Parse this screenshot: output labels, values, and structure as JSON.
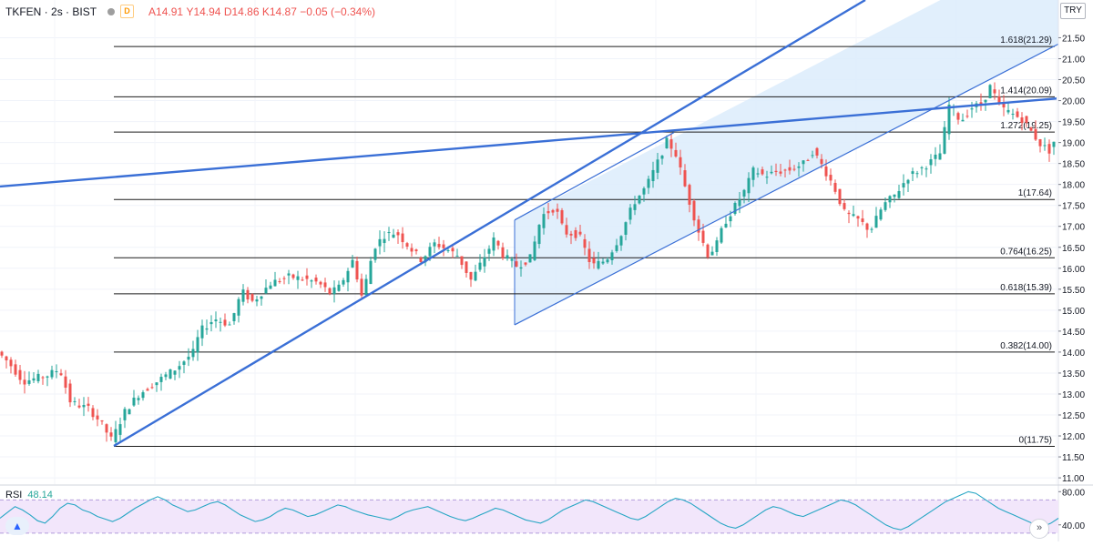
{
  "header": {
    "symbol": "TKFEN",
    "interval": "2s",
    "exchange": "BIST",
    "badge": "D",
    "open": "A14.91",
    "high": "Y14.94",
    "low": "D14.86",
    "close": "K14.87",
    "change": "−0.05 (−0.34%)",
    "currency": "TRY"
  },
  "colors": {
    "up": "#26a69a",
    "down": "#ef5350",
    "trend": "#3a6fd6",
    "channel_fill": "#dcecfb",
    "fib_line": "#1c1c1c",
    "rsi_line": "#26a6c4",
    "rsi_band": "#f2e6fb"
  },
  "icons": [
    "tradingview-logo-icon",
    "scroll-to-realtime-icon"
  ],
  "chart_data": [
    {
      "type": "candlestick",
      "title": "TKFEN · 2s · BIST",
      "yaxis": {
        "range": [
          10.85,
          22.4
        ],
        "ticks": [
          "21.50",
          "21.00",
          "20.50",
          "20.00",
          "19.50",
          "19.00",
          "18.50",
          "18.00",
          "17.50",
          "17.00",
          "16.50",
          "16.00",
          "15.50",
          "15.00",
          "14.50",
          "14.00",
          "13.50",
          "13.00",
          "12.50",
          "12.00",
          "11.50",
          "11.00"
        ]
      },
      "grid": true,
      "price_path": [
        [
          0,
          14.0
        ],
        [
          12,
          13.75
        ],
        [
          28,
          13.3
        ],
        [
          55,
          13.45
        ],
        [
          68,
          13.6
        ],
        [
          80,
          12.8
        ],
        [
          100,
          12.65
        ],
        [
          112,
          12.35
        ],
        [
          125,
          11.9
        ],
        [
          140,
          12.6
        ],
        [
          155,
          13.0
        ],
        [
          175,
          13.3
        ],
        [
          195,
          13.6
        ],
        [
          215,
          14.0
        ],
        [
          222,
          14.5
        ],
        [
          238,
          14.8
        ],
        [
          255,
          14.65
        ],
        [
          268,
          15.45
        ],
        [
          280,
          15.2
        ],
        [
          300,
          15.65
        ],
        [
          320,
          15.8
        ],
        [
          335,
          15.75
        ],
        [
          352,
          15.65
        ],
        [
          365,
          15.4
        ],
        [
          375,
          15.55
        ],
        [
          390,
          16.2
        ],
        [
          400,
          15.3
        ],
        [
          413,
          16.5
        ],
        [
          425,
          16.8
        ],
        [
          438,
          16.85
        ],
        [
          452,
          16.5
        ],
        [
          465,
          16.2
        ],
        [
          480,
          16.6
        ],
        [
          493,
          16.45
        ],
        [
          505,
          16.3
        ],
        [
          520,
          15.7
        ],
        [
          530,
          16.1
        ],
        [
          545,
          16.7
        ],
        [
          555,
          16.3
        ],
        [
          570,
          16.05
        ],
        [
          585,
          16.25
        ],
        [
          597,
          17.25
        ],
        [
          612,
          17.45
        ],
        [
          622,
          16.85
        ],
        [
          638,
          16.8
        ],
        [
          652,
          16.05
        ],
        [
          668,
          16.2
        ],
        [
          683,
          16.75
        ],
        [
          698,
          17.55
        ],
        [
          712,
          17.95
        ],
        [
          725,
          18.55
        ],
        [
          735,
          19.05
        ],
        [
          745,
          18.7
        ],
        [
          757,
          17.75
        ],
        [
          770,
          16.85
        ],
        [
          780,
          16.3
        ],
        [
          790,
          16.6
        ],
        [
          797,
          17.05
        ],
        [
          810,
          17.5
        ],
        [
          820,
          17.85
        ],
        [
          830,
          18.35
        ],
        [
          842,
          18.2
        ],
        [
          855,
          18.3
        ],
        [
          870,
          18.35
        ],
        [
          885,
          18.5
        ],
        [
          895,
          18.8
        ],
        [
          905,
          18.45
        ],
        [
          918,
          17.95
        ],
        [
          930,
          17.3
        ],
        [
          945,
          17.15
        ],
        [
          958,
          16.9
        ],
        [
          972,
          17.5
        ],
        [
          985,
          17.75
        ],
        [
          1000,
          18.2
        ],
        [
          1012,
          18.35
        ],
        [
          1025,
          18.55
        ],
        [
          1035,
          18.75
        ],
        [
          1045,
          19.95
        ],
        [
          1057,
          19.5
        ],
        [
          1070,
          19.85
        ],
        [
          1080,
          19.9
        ],
        [
          1090,
          20.35
        ],
        [
          1100,
          19.85
        ],
        [
          1112,
          19.7
        ],
        [
          1125,
          19.55
        ],
        [
          1135,
          19.25
        ],
        [
          1145,
          18.95
        ],
        [
          1155,
          18.8
        ],
        [
          1162,
          19.15
        ]
      ],
      "fibonacci": [
        {
          "level": "1.618",
          "price": 21.29,
          "label": "1.618(21.29)"
        },
        {
          "level": "1.414",
          "price": 20.09,
          "label": "1.414(20.09)"
        },
        {
          "level": "1.272",
          "price": 19.25,
          "label": "1.272(19.25)"
        },
        {
          "level": "1",
          "price": 17.64,
          "label": "1(17.64)"
        },
        {
          "level": "0.764",
          "price": 16.25,
          "label": "0.764(16.25)"
        },
        {
          "level": "0.618",
          "price": 15.39,
          "label": "0.618(15.39)"
        },
        {
          "level": "0.382",
          "price": 14.0,
          "label": "0.382(14.00)"
        },
        {
          "level": "0",
          "price": 11.75,
          "label": "0(11.75)"
        }
      ],
      "trendlines": [
        {
          "name": "rising-support",
          "from": [
            125,
            11.76
          ],
          "to": [
            950,
            22.4
          ],
          "width": 2.4
        },
        {
          "name": "long-resistance",
          "from": [
            0,
            17.95
          ],
          "to": [
            1160,
            20.05
          ],
          "width": 2.4
        },
        {
          "name": "channel-upper",
          "from": [
            565,
            17.15
          ],
          "to": [
            740,
            19.24
          ],
          "width": 1.2
        },
        {
          "name": "channel-lower",
          "from": [
            565,
            14.65
          ],
          "to": [
            1162,
            21.35
          ],
          "width": 1.2
        }
      ],
      "channel": {
        "start_bar": 565,
        "start_upper": 17.15,
        "start_lower": 14.65,
        "slope": 0.011229
      }
    },
    {
      "type": "line",
      "title": "RSI",
      "value_label": "48.14",
      "yaxis": {
        "range": [
          20,
          88
        ],
        "ticks": [
          "80.00",
          "40.00"
        ],
        "band": [
          30,
          70
        ]
      },
      "values": [
        48,
        55,
        62,
        58,
        52,
        45,
        42,
        50,
        60,
        66,
        64,
        58,
        55,
        50,
        47,
        44,
        48,
        54,
        60,
        65,
        70,
        74,
        70,
        64,
        60,
        56,
        58,
        62,
        66,
        68,
        64,
        58,
        52,
        48,
        44,
        46,
        50,
        56,
        60,
        58,
        54,
        50,
        52,
        56,
        60,
        64,
        62,
        58,
        55,
        52,
        50,
        48,
        46,
        50,
        55,
        58,
        60,
        62,
        58,
        54,
        50,
        47,
        45,
        48,
        52,
        56,
        60,
        58,
        54,
        50,
        46,
        44,
        42,
        46,
        52,
        58,
        62,
        66,
        70,
        68,
        64,
        60,
        56,
        52,
        48,
        46,
        50,
        56,
        62,
        68,
        72,
        70,
        66,
        60,
        54,
        48,
        42,
        38,
        36,
        40,
        46,
        52,
        58,
        62,
        60,
        56,
        52,
        50,
        54,
        58,
        62,
        66,
        70,
        68,
        64,
        58,
        52,
        46,
        40,
        36,
        34,
        38,
        44,
        50,
        56,
        62,
        68,
        72,
        76,
        80,
        78,
        72,
        66,
        60,
        56,
        52,
        48,
        44,
        40,
        38,
        42,
        48
      ]
    }
  ]
}
